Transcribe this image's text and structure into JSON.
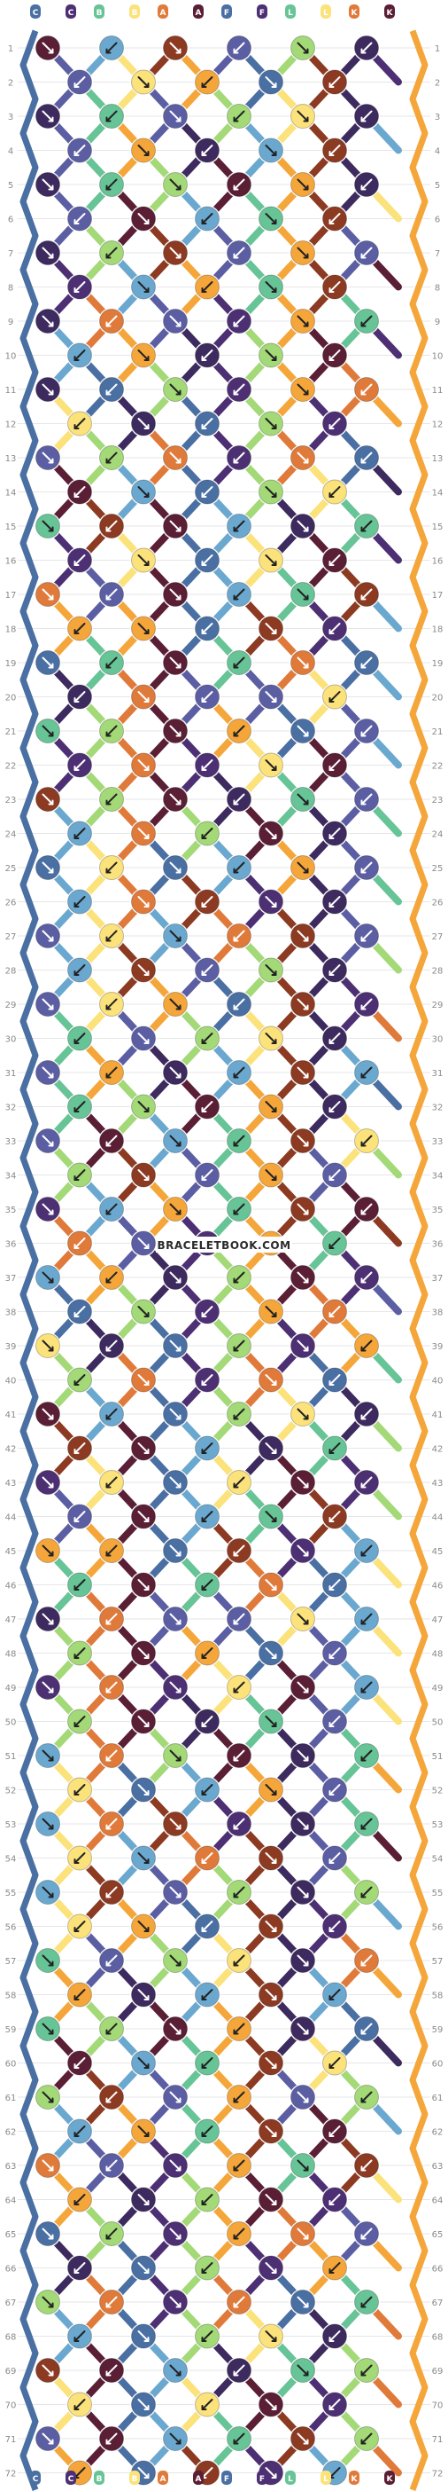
{
  "pattern": {
    "rows": 72,
    "strings": 12,
    "top_letters": [
      "C",
      "C",
      "B",
      "B",
      "A",
      "A",
      "F",
      "F",
      "L",
      "L",
      "K",
      "K"
    ],
    "bottom_letters": [
      "C",
      "C",
      "B",
      "B",
      "A",
      "A",
      "F",
      "F",
      "L",
      "L",
      "K",
      "K"
    ],
    "watermark": "BRACELETBOOK.COM",
    "palette": [
      "#4a6fa3",
      "#5c5ea3",
      "#4d3073",
      "#6ba8cf",
      "#67c496",
      "#a3d977",
      "#fce27a",
      "#f5a63a",
      "#e07a3a",
      "#8c3a22",
      "#5a1e35",
      "#3d2a5e"
    ]
  }
}
